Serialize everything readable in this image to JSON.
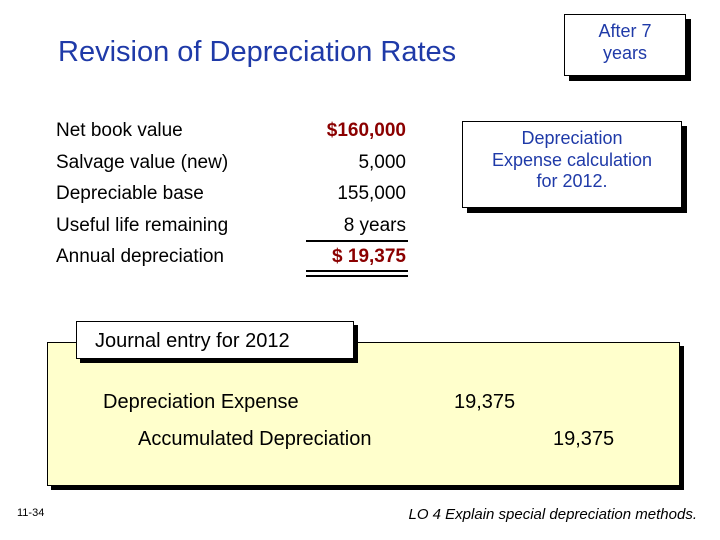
{
  "title": "Revision of Depreciation Rates",
  "badge": {
    "line1": "After 7",
    "line2": "years"
  },
  "calc_note": {
    "line1": "Depreciation",
    "line2": "Expense calculation",
    "line3": "for 2012."
  },
  "schedule": [
    {
      "label": "Net book value",
      "value": "$160,000"
    },
    {
      "label": "Salvage value (new)",
      "value": "5,000"
    },
    {
      "label": "Depreciable base",
      "value": "155,000"
    },
    {
      "label": "Useful life remaining",
      "value": "8 years"
    },
    {
      "label": "Annual depreciation",
      "value": "$ 19,375"
    }
  ],
  "journal": {
    "label": "Journal entry for 2012",
    "debit_account": "Depreciation Expense",
    "debit_amount": "19,375",
    "credit_account": "Accumulated Depreciation",
    "credit_amount": "19,375"
  },
  "footer": {
    "page": "11-34",
    "lo": "LO 4  Explain special depreciation methods."
  },
  "colors": {
    "title": "#1f3aa8",
    "values_highlight": "#8b0000",
    "journal_bg": "#ffffcc"
  }
}
